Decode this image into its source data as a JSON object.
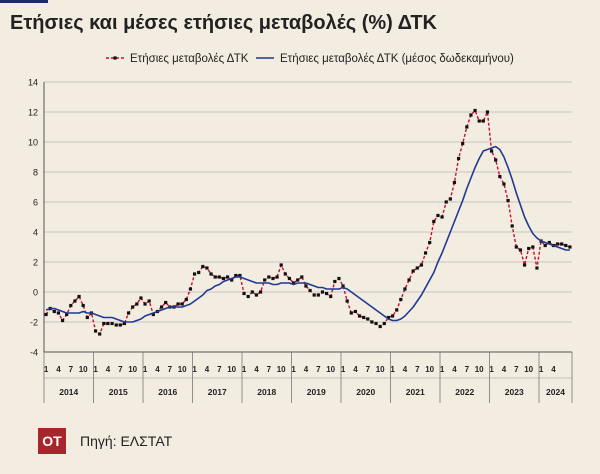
{
  "title": "Ετήσιες και μέσες ετήσιες μεταβολές (%) ΔΤΚ",
  "footer": {
    "logo": "OT",
    "source": "Πηγή: ΕΛΣΤΑΤ"
  },
  "colors": {
    "annual": "#c8102e",
    "markers": "#111111",
    "average": "#1f3a93",
    "grid": "#b8b8b8",
    "logo_bg": "#a8262b"
  },
  "chart_data": {
    "type": "line",
    "title": "Ετήσιες και μέσες ετήσιες μεταβολές (%) ΔΤΚ",
    "xlabel": "",
    "ylabel": "",
    "ylim": [
      -4,
      14
    ],
    "yticks": [
      "-4",
      "-2",
      "0",
      "2",
      "4",
      "6",
      "8",
      "10",
      "12",
      "14"
    ],
    "grid": true,
    "legend_position": "top",
    "x_month_ticks": [
      "1",
      "4",
      "7",
      "10"
    ],
    "x_last_tick": "4",
    "years": [
      "2014",
      "2015",
      "2016",
      "2017",
      "2018",
      "2019",
      "2020",
      "2021",
      "2022",
      "2023",
      "2024"
    ],
    "start": "2014-01",
    "end": "2024-04",
    "series": [
      {
        "name": "Ετήσιες μεταβολές ΔΤΚ",
        "style": "dashed-markers",
        "values": [
          -1.5,
          -1.1,
          -1.3,
          -1.4,
          -1.9,
          -1.5,
          -0.9,
          -0.6,
          -0.3,
          -0.9,
          -1.7,
          -1.4,
          -2.6,
          -2.8,
          -2.1,
          -2.1,
          -2.1,
          -2.2,
          -2.2,
          -2.1,
          -1.4,
          -1.0,
          -0.8,
          -0.4,
          -0.8,
          -0.6,
          -1.5,
          -1.3,
          -1.0,
          -0.7,
          -1.0,
          -1.0,
          -0.8,
          -0.8,
          -0.5,
          0.2,
          1.2,
          1.3,
          1.7,
          1.6,
          1.2,
          1.0,
          1.0,
          0.9,
          1.0,
          0.8,
          1.1,
          1.1,
          -0.1,
          -0.3,
          0.0,
          -0.2,
          0.0,
          0.8,
          1.0,
          0.9,
          1.0,
          1.8,
          1.2,
          0.9,
          0.6,
          0.8,
          1.0,
          0.4,
          0.1,
          -0.2,
          -0.2,
          0.0,
          -0.1,
          -0.3,
          0.7,
          0.9,
          0.4,
          -0.6,
          -1.4,
          -1.3,
          -1.6,
          -1.7,
          -1.8,
          -2.0,
          -2.1,
          -2.3,
          -2.1,
          -1.7,
          -1.6,
          -1.2,
          -0.5,
          0.2,
          0.8,
          1.4,
          1.6,
          1.8,
          2.6,
          3.3,
          4.7,
          5.1,
          5.0,
          6.0,
          6.2,
          7.3,
          8.9,
          9.9,
          11.0,
          11.8,
          12.1,
          11.4,
          11.4,
          12.0,
          9.4,
          8.8,
          7.7,
          7.2,
          6.1,
          4.4,
          3.0,
          2.8,
          1.8,
          2.9,
          3.0,
          1.6,
          3.4,
          3.1,
          3.3,
          3.1,
          3.2,
          3.2,
          3.1,
          3.0
        ]
      },
      {
        "name": "Ετήσιες μεταβολές ΔΤΚ (μέσος δωδεκαμήνου)",
        "style": "solid",
        "values": [
          -1.2,
          -1.1,
          -1.1,
          -1.2,
          -1.3,
          -1.4,
          -1.4,
          -1.4,
          -1.4,
          -1.3,
          -1.4,
          -1.4,
          -1.5,
          -1.6,
          -1.7,
          -1.7,
          -1.7,
          -1.8,
          -1.9,
          -2.0,
          -2.0,
          -2.0,
          -1.9,
          -1.8,
          -1.6,
          -1.5,
          -1.4,
          -1.3,
          -1.2,
          -1.1,
          -1.0,
          -1.0,
          -1.0,
          -1.0,
          -0.9,
          -0.8,
          -0.6,
          -0.4,
          -0.2,
          0.1,
          0.2,
          0.4,
          0.5,
          0.7,
          0.8,
          0.9,
          1.0,
          1.0,
          0.9,
          0.8,
          0.7,
          0.6,
          0.6,
          0.6,
          0.6,
          0.5,
          0.5,
          0.6,
          0.6,
          0.6,
          0.5,
          0.6,
          0.6,
          0.6,
          0.5,
          0.4,
          0.3,
          0.3,
          0.2,
          0.2,
          0.2,
          0.2,
          0.3,
          0.2,
          0.0,
          -0.2,
          -0.4,
          -0.6,
          -0.8,
          -1.0,
          -1.2,
          -1.4,
          -1.6,
          -1.8,
          -1.9,
          -1.9,
          -1.8,
          -1.6,
          -1.3,
          -1.0,
          -0.6,
          -0.2,
          0.3,
          0.8,
          1.3,
          2.0,
          2.6,
          3.3,
          4.0,
          4.7,
          5.4,
          6.1,
          6.9,
          7.6,
          8.3,
          8.9,
          9.4,
          9.5,
          9.6,
          9.7,
          9.5,
          9.0,
          8.3,
          7.5,
          6.6,
          5.8,
          5.0,
          4.4,
          3.9,
          3.6,
          3.4,
          3.3,
          3.2,
          3.1,
          3.0,
          2.9,
          2.8,
          2.8
        ]
      }
    ]
  }
}
